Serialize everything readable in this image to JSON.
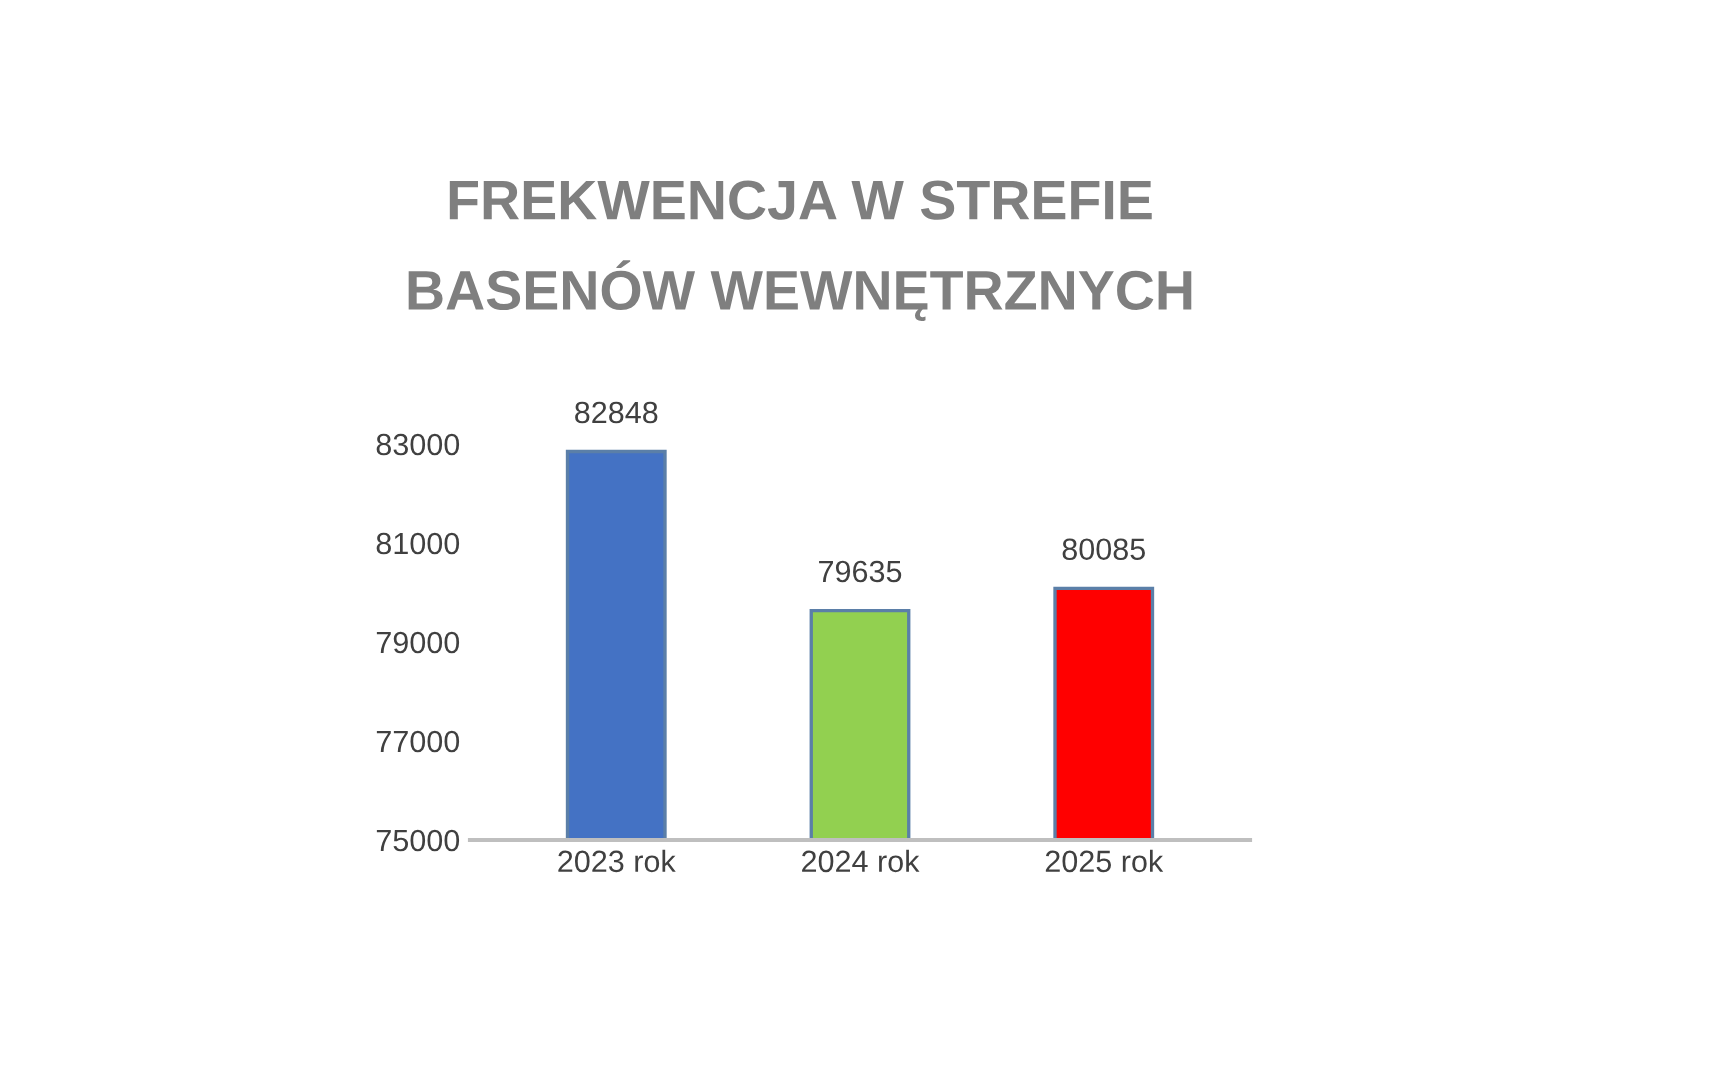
{
  "chart_data": {
    "type": "bar",
    "title": "FREKWENCJA W STREFIE\nBASENÓW WEWNĘTRZNYCH",
    "categories": [
      "2023 rok",
      "2024 rok",
      "2025 rok"
    ],
    "values": [
      82848,
      79635,
      80085
    ],
    "colors": [
      "#4472c4",
      "#92d050",
      "#ff0000"
    ],
    "ylim": [
      75000,
      83000
    ],
    "yticks": [
      75000,
      77000,
      79000,
      81000,
      83000
    ],
    "data_labels": true,
    "grid": false,
    "legend": false
  }
}
